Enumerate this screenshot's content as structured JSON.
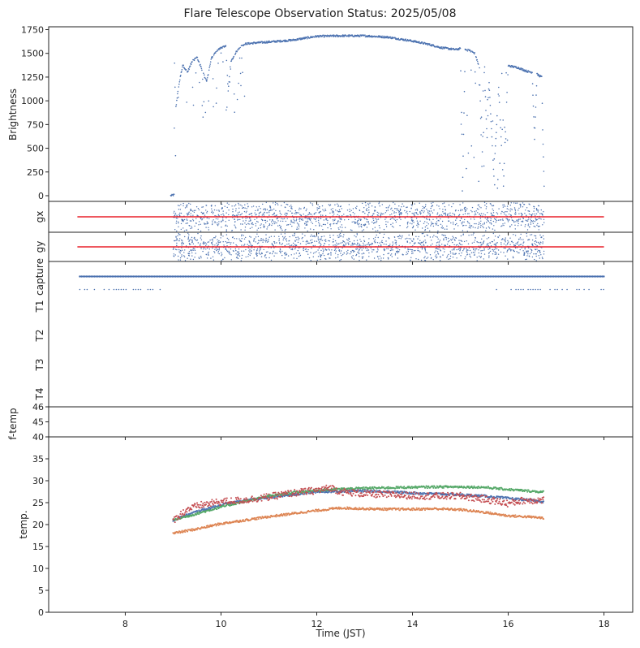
{
  "title": "Flare Telescope Observation Status: 2025/05/08",
  "colors": {
    "blue": "#4c72b0",
    "orange": "#dd8452",
    "green": "#55a868",
    "red": "#c44e52",
    "ref_line": "#e8202a",
    "frame": "#222222"
  },
  "chart_data": [
    {
      "panel": "brightness",
      "type": "scatter",
      "ylabel": "Brightness",
      "xlim": [
        6.4,
        18.6
      ],
      "ylim": [
        -60,
        1780
      ],
      "yticks": [
        0,
        250,
        500,
        750,
        1000,
        1250,
        1500,
        1750
      ],
      "series": [
        {
          "color": "blue",
          "points": [
            [
              8.95,
              0
            ],
            [
              9.02,
              10
            ],
            [
              9.03,
              1400
            ],
            [
              9.05,
              900
            ],
            [
              9.1,
              1100
            ],
            [
              9.15,
              1250
            ],
            [
              9.2,
              1380
            ],
            [
              9.3,
              1300
            ],
            [
              9.4,
              1420
            ],
            [
              9.5,
              1460
            ],
            [
              9.6,
              1330
            ],
            [
              9.7,
              1200
            ],
            [
              9.8,
              1450
            ],
            [
              9.9,
              1520
            ],
            [
              10.0,
              1560
            ],
            [
              10.1,
              1580
            ],
            [
              10.15,
              1100
            ],
            [
              10.2,
              1400
            ],
            [
              10.3,
              1500
            ],
            [
              10.4,
              1570
            ],
            [
              10.5,
              1600
            ],
            [
              10.7,
              1610
            ],
            [
              11.0,
              1620
            ],
            [
              11.5,
              1640
            ],
            [
              12.0,
              1680
            ],
            [
              12.5,
              1685
            ],
            [
              13.0,
              1685
            ],
            [
              13.5,
              1670
            ],
            [
              14.0,
              1630
            ],
            [
              14.3,
              1600
            ],
            [
              14.6,
              1560
            ],
            [
              14.9,
              1540
            ],
            [
              15.0,
              1550
            ],
            [
              15.05,
              200
            ],
            [
              15.1,
              1540
            ],
            [
              15.2,
              1530
            ],
            [
              15.3,
              1500
            ],
            [
              15.4,
              1350
            ],
            [
              15.45,
              300
            ],
            [
              15.5,
              1300
            ],
            [
              15.55,
              700
            ],
            [
              15.6,
              1200
            ],
            [
              15.7,
              200
            ],
            [
              15.8,
              1150
            ],
            [
              15.9,
              100
            ],
            [
              15.95,
              800
            ],
            [
              16.0,
              1370
            ],
            [
              16.1,
              1360
            ],
            [
              16.2,
              1350
            ],
            [
              16.3,
              1330
            ],
            [
              16.4,
              1310
            ],
            [
              16.5,
              1300
            ],
            [
              16.55,
              600
            ],
            [
              16.6,
              1280
            ],
            [
              16.7,
              1250
            ],
            [
              16.72,
              700
            ],
            [
              16.75,
              100
            ]
          ]
        }
      ]
    },
    {
      "panel": "gx",
      "type": "scatter",
      "ylabel": "gx",
      "xlim": [
        6.4,
        18.6
      ],
      "series": [
        {
          "color": "blue",
          "x_range": [
            9.0,
            16.75
          ],
          "level": 0.0
        }
      ],
      "reference_line": {
        "color": "ref_line",
        "x_range": [
          7.0,
          18.0
        ],
        "value": 0.0
      }
    },
    {
      "panel": "gy",
      "type": "scatter",
      "ylabel": "gy",
      "xlim": [
        6.4,
        18.6
      ],
      "series": [
        {
          "color": "blue",
          "x_range": [
            9.0,
            16.75
          ],
          "level": 0.0
        }
      ],
      "reference_line": {
        "color": "ref_line",
        "x_range": [
          7.0,
          18.0
        ],
        "value": 0.0
      }
    },
    {
      "panel": "status",
      "type": "scatter",
      "categories": [
        "capture",
        "T1",
        "T2",
        "T3",
        "T4"
      ],
      "xlim": [
        6.4,
        18.6
      ],
      "series": [
        {
          "category": "capture",
          "color": "blue",
          "x_range": [
            7.05,
            18.0
          ]
        },
        {
          "category": "T1",
          "color": "blue",
          "x_range": [
            7.0,
            8.8
          ]
        },
        {
          "category": "T1",
          "color": "blue",
          "x_range": [
            15.4,
            18.0
          ]
        }
      ]
    },
    {
      "panel": "f-temp",
      "type": "scatter",
      "ylabel": "f-temp",
      "xlim": [
        6.4,
        18.6
      ],
      "ylim": [
        44,
        46
      ],
      "yticks": [
        45,
        46
      ]
    },
    {
      "panel": "temp",
      "type": "line",
      "ylabel": "temp.",
      "xlabel": "Time (JST)",
      "xlim": [
        6.4,
        18.6
      ],
      "ylim": [
        0,
        40
      ],
      "xticks": [
        8,
        10,
        12,
        14,
        16,
        18
      ],
      "yticks": [
        0,
        5,
        10,
        15,
        20,
        25,
        30,
        35,
        40
      ],
      "series": [
        {
          "color": "blue",
          "x": [
            9.0,
            9.5,
            10.0,
            10.5,
            11.0,
            11.5,
            12.0,
            12.5,
            13.0,
            13.5,
            14.0,
            14.5,
            15.0,
            15.5,
            16.0,
            16.5,
            16.75
          ],
          "values": [
            21.0,
            23.0,
            24.5,
            25.5,
            26.2,
            26.8,
            27.5,
            27.6,
            27.7,
            27.5,
            27.2,
            27.0,
            26.8,
            26.5,
            26.0,
            25.5,
            25.2
          ]
        },
        {
          "color": "orange",
          "x": [
            9.0,
            9.5,
            10.0,
            10.5,
            11.0,
            11.5,
            12.0,
            12.5,
            13.0,
            13.5,
            14.0,
            14.5,
            15.0,
            15.5,
            16.0,
            16.5,
            16.75
          ],
          "values": [
            18.0,
            19.0,
            20.2,
            21.0,
            21.8,
            22.5,
            23.2,
            23.8,
            23.6,
            23.5,
            23.5,
            23.6,
            23.4,
            22.8,
            22.0,
            21.7,
            21.5
          ]
        },
        {
          "color": "green",
          "x": [
            9.0,
            9.5,
            10.0,
            10.5,
            11.0,
            11.5,
            12.0,
            12.5,
            13.0,
            13.5,
            14.0,
            14.5,
            15.0,
            15.5,
            16.0,
            16.5,
            16.75
          ],
          "values": [
            21.0,
            22.5,
            24.0,
            25.3,
            26.5,
            27.3,
            27.8,
            28.1,
            28.3,
            28.4,
            28.5,
            28.6,
            28.6,
            28.5,
            28.0,
            27.6,
            27.4
          ]
        },
        {
          "color": "red",
          "x": [
            9.0,
            9.3,
            9.6,
            10.0,
            10.5,
            11.0,
            11.5,
            12.0,
            12.3,
            12.5,
            13.0,
            13.5,
            14.0,
            14.5,
            15.0,
            15.5,
            16.0,
            16.3,
            16.75
          ],
          "values": [
            21.0,
            23.5,
            24.5,
            25.2,
            25.6,
            26.3,
            27.2,
            27.8,
            28.4,
            27.5,
            27.0,
            26.8,
            26.6,
            26.5,
            26.5,
            25.8,
            24.8,
            25.5,
            25.6
          ]
        }
      ]
    }
  ]
}
